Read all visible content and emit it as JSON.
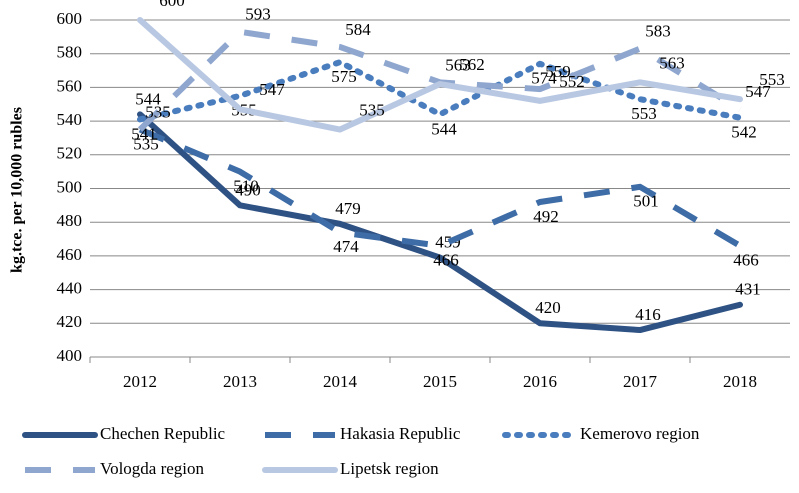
{
  "chart_data": {
    "type": "line",
    "ylabel": "kg.tce. per 10,000 rubles",
    "categories": [
      "2012",
      "2013",
      "2014",
      "2015",
      "2016",
      "2017",
      "2018"
    ],
    "series": [
      {
        "name": "Chechen Republic",
        "color": "#2f5284",
        "values": [
          544,
          490,
          479,
          459,
          420,
          416,
          431
        ]
      },
      {
        "name": "Hakasia Republic",
        "color": "#3d6ca6",
        "values": [
          535,
          510,
          474,
          466,
          492,
          501,
          466
        ]
      },
      {
        "name": "Kemerovo region",
        "color": "#4a7dbd",
        "values": [
          541,
          555,
          575,
          544,
          574,
          553,
          542
        ]
      },
      {
        "name": "Vologda region",
        "color": "#8fa7cf",
        "values": [
          535,
          593,
          584,
          563,
          559,
          583,
          547
        ]
      },
      {
        "name": "Lipetsk region",
        "color": "#b9c8e2",
        "values": [
          600,
          547,
          535,
          562,
          552,
          563,
          553
        ]
      }
    ],
    "ylim": [
      400,
      600
    ],
    "yticks": [
      400,
      420,
      440,
      460,
      480,
      500,
      520,
      540,
      560,
      580,
      600
    ],
    "grid": true
  }
}
